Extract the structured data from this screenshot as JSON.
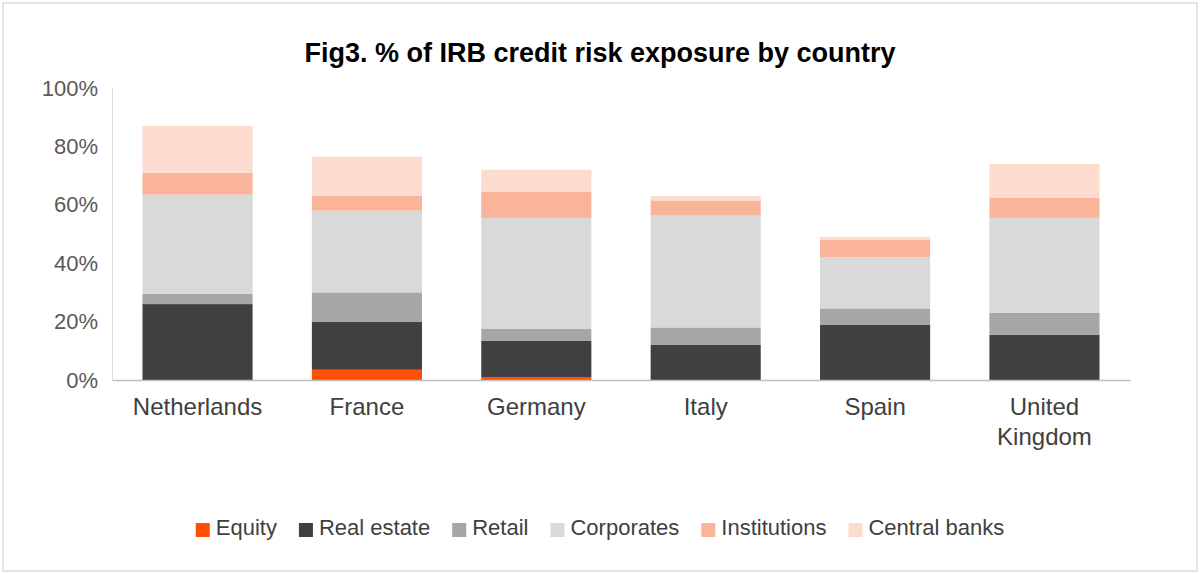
{
  "chart_data": {
    "type": "bar",
    "title": "Fig3. % of IRB credit risk exposure by country",
    "categories": [
      "Netherlands",
      "France",
      "Germany",
      "Italy",
      "Spain",
      "United Kingdom"
    ],
    "series": [
      {
        "name": "Equity",
        "color": "#fe5000",
        "values": [
          0,
          3.5,
          1,
          0,
          0,
          0
        ]
      },
      {
        "name": "Real estate",
        "color": "#404040",
        "values": [
          26,
          16.5,
          12.5,
          12,
          19,
          15.5
        ]
      },
      {
        "name": "Retail",
        "color": "#a6a6a6",
        "values": [
          3.5,
          10,
          4,
          6,
          5.5,
          7.5
        ]
      },
      {
        "name": "Corporates",
        "color": "#d9d9d9",
        "values": [
          34,
          28,
          38,
          38.5,
          17.5,
          32.5
        ]
      },
      {
        "name": "Institutions",
        "color": "#f9b49a",
        "values": [
          7.5,
          5,
          9,
          5,
          6,
          7
        ]
      },
      {
        "name": "Central banks",
        "color": "#fcdccf",
        "values": [
          16,
          13.5,
          7.5,
          1.5,
          1,
          11.5
        ]
      }
    ],
    "ylim": [
      0,
      100
    ],
    "yticks": [
      {
        "value": 0,
        "label": "0%"
      },
      {
        "value": 20,
        "label": "20%"
      },
      {
        "value": 40,
        "label": "40%"
      },
      {
        "value": 60,
        "label": "60%"
      },
      {
        "value": 80,
        "label": "80%"
      },
      {
        "value": 100,
        "label": "100%"
      }
    ],
    "stacked": true,
    "grid": false,
    "legend": "bottom"
  }
}
